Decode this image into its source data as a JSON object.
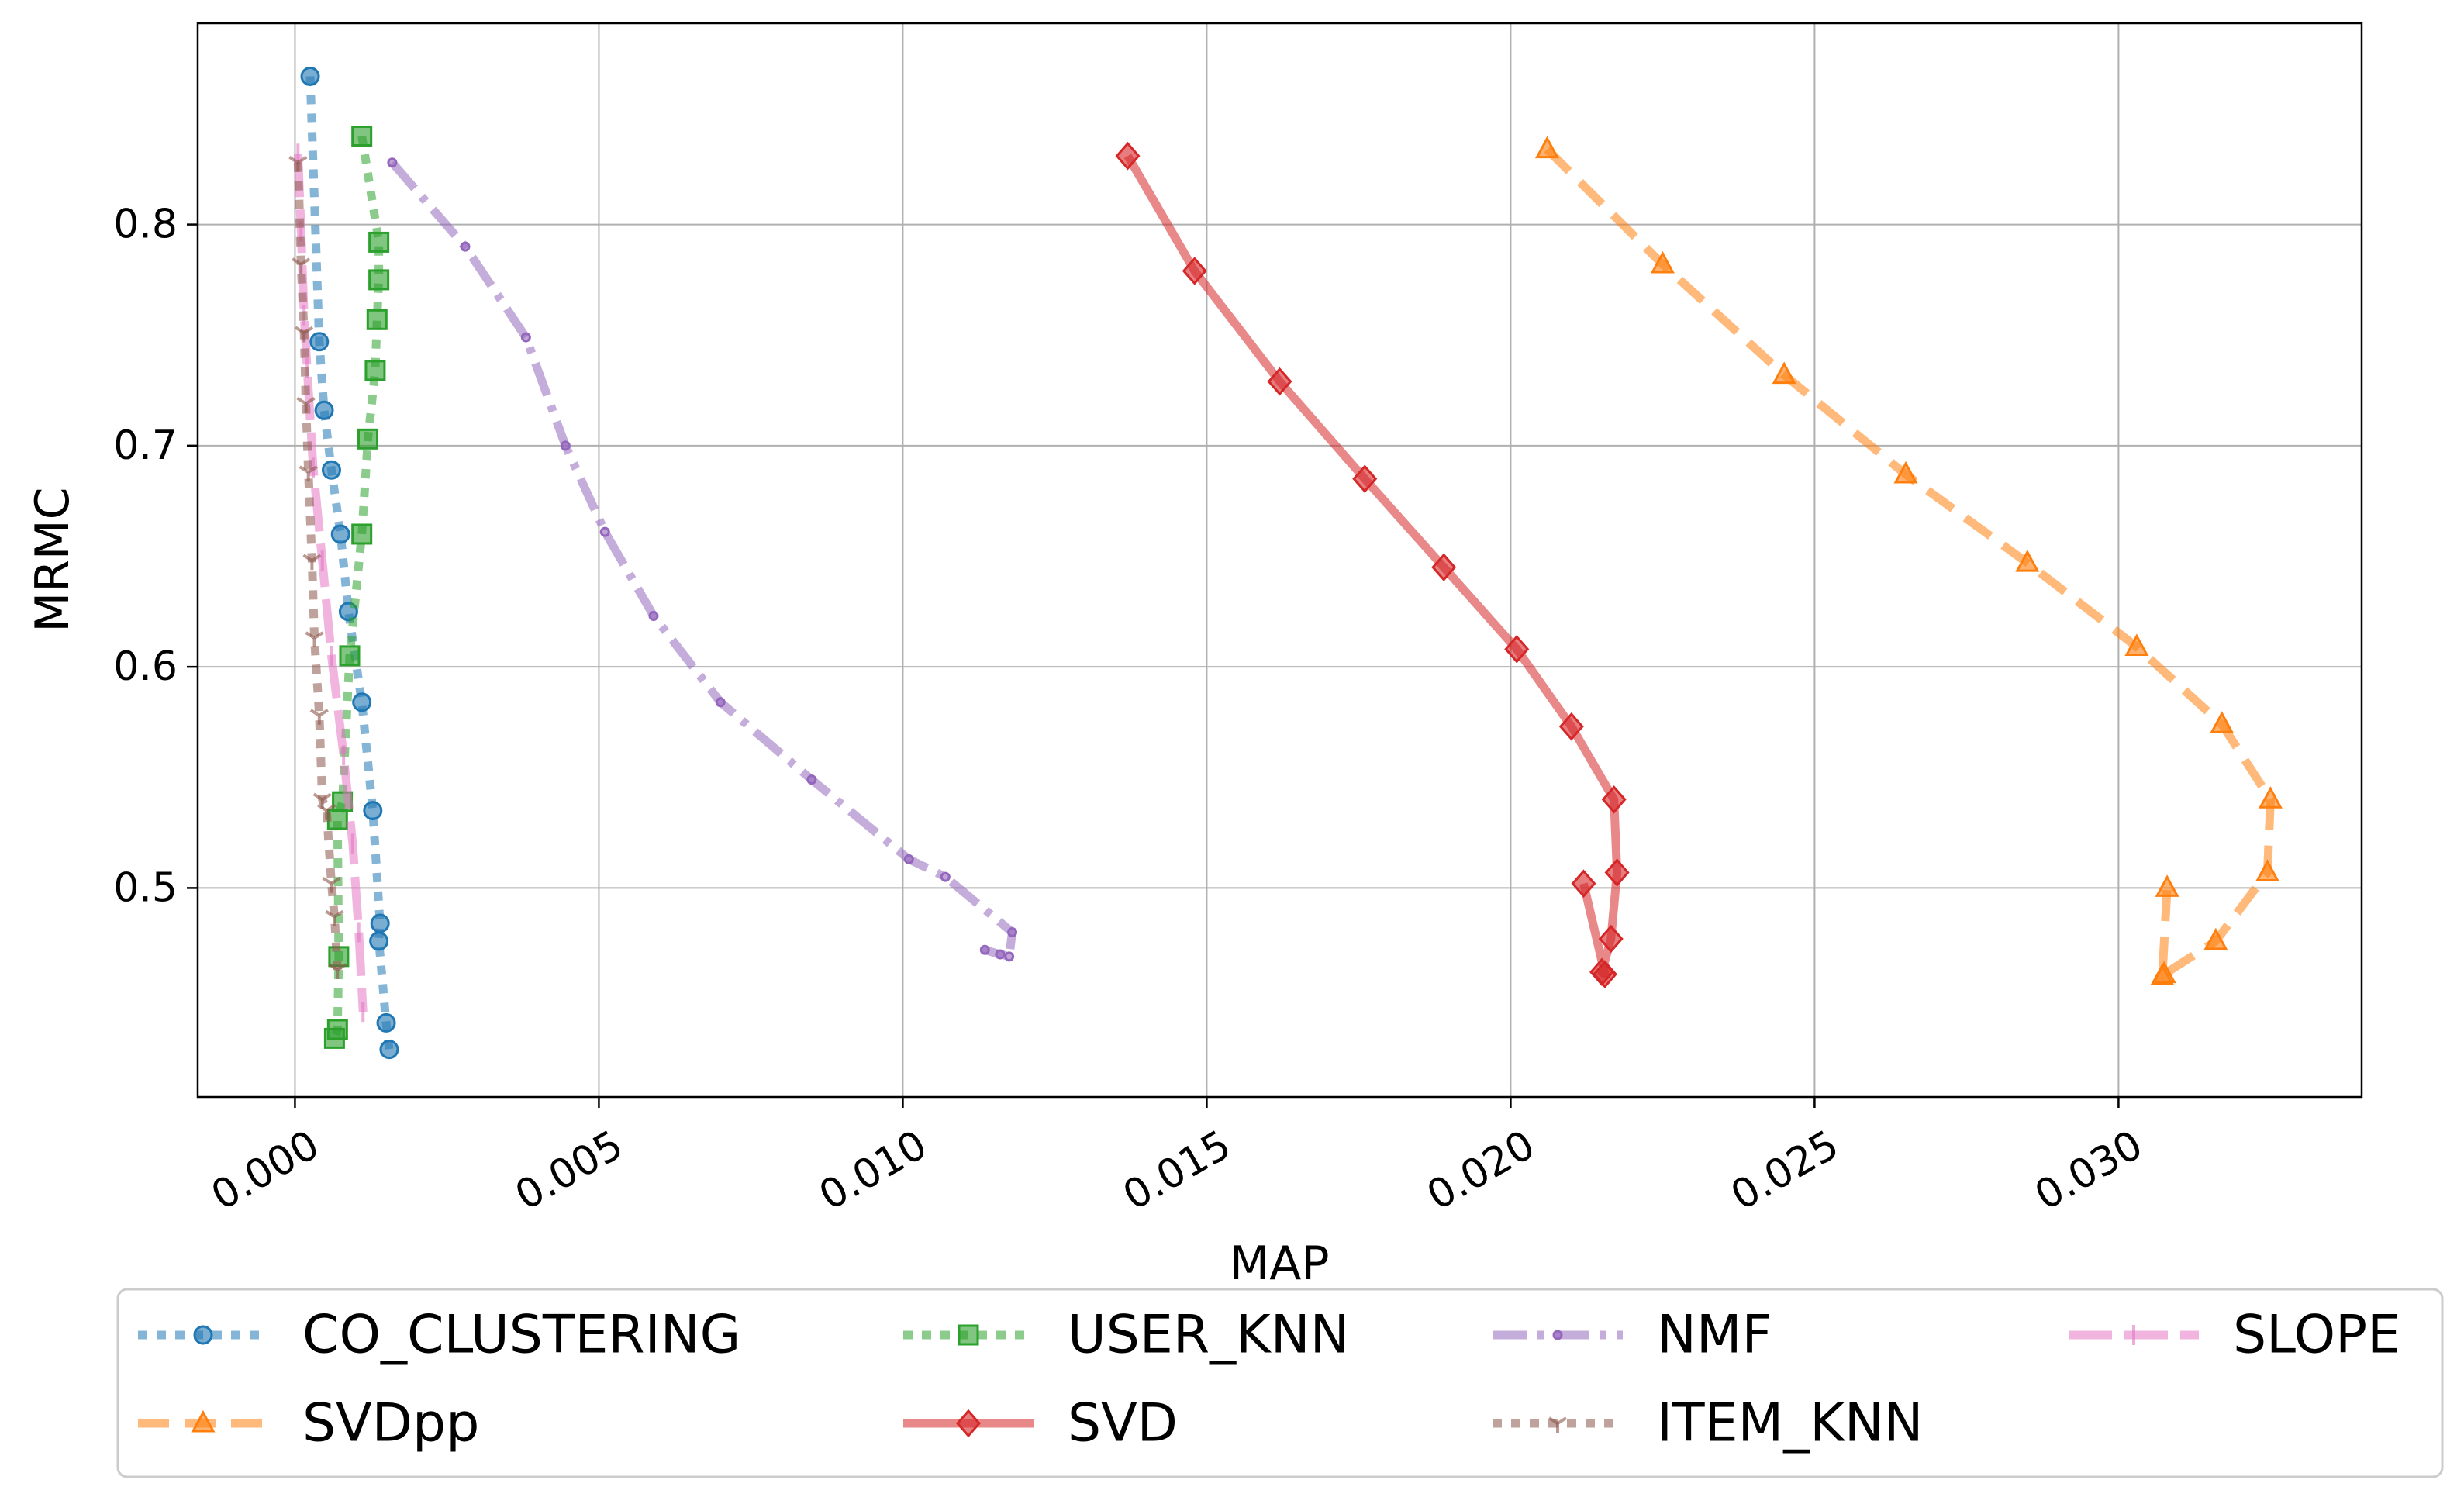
{
  "chart_data": {
    "type": "line",
    "title": "",
    "xlabel": "MAP",
    "ylabel": "MRMC",
    "xlim": [
      -0.0016,
      0.034
    ],
    "ylim": [
      0.4055,
      0.891
    ],
    "xticks": [
      0.0,
      0.005,
      0.01,
      0.015,
      0.02,
      0.025,
      0.03
    ],
    "xtick_labels": [
      "0.000",
      "0.005",
      "0.010",
      "0.015",
      "0.020",
      "0.025",
      "0.030"
    ],
    "yticks": [
      0.5,
      0.6,
      0.7,
      0.8
    ],
    "ytick_labels": [
      "0.5",
      "0.6",
      "0.7",
      "0.8"
    ],
    "grid": true,
    "legend_placement": "below",
    "series": [
      {
        "name": "CO_CLUSTERING",
        "color": "#1f77b4",
        "marker": "circle",
        "dash": "dotted",
        "x": [
          0.00025,
          0.0004,
          0.00048,
          0.0006,
          0.00075,
          0.00088,
          0.0011,
          0.00128,
          0.0014,
          0.00138,
          0.0015,
          0.00155
        ],
        "y": [
          0.867,
          0.747,
          0.716,
          0.689,
          0.66,
          0.625,
          0.584,
          0.535,
          0.484,
          0.476,
          0.439,
          0.427
        ]
      },
      {
        "name": "USER_KNN",
        "color": "#2ca02c",
        "marker": "square",
        "dash": "dotted",
        "x": [
          0.0011,
          0.00138,
          0.00138,
          0.00135,
          0.00132,
          0.0012,
          0.0011,
          0.0009,
          0.00078,
          0.0007,
          0.00072,
          0.0007,
          0.00065
        ],
        "y": [
          0.84,
          0.792,
          0.775,
          0.757,
          0.734,
          0.703,
          0.66,
          0.605,
          0.539,
          0.531,
          0.469,
          0.436,
          0.432
        ]
      },
      {
        "name": "NMF",
        "color": "#9467bd",
        "marker": "small-circle",
        "dash": "dashdot",
        "x": [
          0.0016,
          0.0028,
          0.0038,
          0.00445,
          0.0051,
          0.0059,
          0.007,
          0.0085,
          0.0101,
          0.0107,
          0.0118,
          0.01175,
          0.01135,
          0.0116
        ],
        "y": [
          0.828,
          0.79,
          0.749,
          0.7,
          0.661,
          0.623,
          0.584,
          0.549,
          0.513,
          0.505,
          0.48,
          0.469,
          0.472,
          0.47
        ]
      },
      {
        "name": "SLOPE",
        "color": "#e377c2",
        "marker": "vline",
        "dash": "longdash",
        "x": [
          5e-05,
          0.0001,
          0.00015,
          0.0002,
          0.0003,
          0.00045,
          0.0006,
          0.0008,
          0.00095,
          0.00105,
          0.00112
        ],
        "y": [
          0.832,
          0.797,
          0.759,
          0.735,
          0.69,
          0.648,
          0.605,
          0.56,
          0.52,
          0.48,
          0.444
        ]
      },
      {
        "name": "SVDpp",
        "color": "#ff7f0e",
        "marker": "triangle",
        "dash": "dashed",
        "x": [
          0.0206,
          0.0225,
          0.0245,
          0.0265,
          0.0285,
          0.0303,
          0.0317,
          0.0325,
          0.03245,
          0.0316,
          0.03075,
          0.03072,
          0.0308
        ],
        "y": [
          0.834,
          0.782,
          0.732,
          0.687,
          0.647,
          0.609,
          0.574,
          0.54,
          0.507,
          0.476,
          0.461,
          0.46,
          0.5
        ]
      },
      {
        "name": "SVD",
        "color": "#d62728",
        "marker": "diamond",
        "dash": "solid",
        "x": [
          0.0137,
          0.0148,
          0.0162,
          0.0176,
          0.0189,
          0.0201,
          0.021,
          0.0217,
          0.02175,
          0.02165,
          0.0215,
          0.02155,
          0.0212
        ],
        "y": [
          0.831,
          0.779,
          0.729,
          0.685,
          0.645,
          0.608,
          0.573,
          0.54,
          0.507,
          0.477,
          0.462,
          0.461,
          0.502
        ]
      },
      {
        "name": "ITEM_KNN",
        "color": "#8c564b",
        "marker": "tri-down",
        "dash": "dotted",
        "x": [
          5e-05,
          0.0001,
          0.00015,
          0.00018,
          0.00022,
          0.00028,
          0.00032,
          0.0004,
          0.00045,
          0.00052,
          0.0006,
          0.00065,
          0.0007
        ],
        "y": [
          0.828,
          0.782,
          0.751,
          0.719,
          0.688,
          0.648,
          0.613,
          0.578,
          0.54,
          0.535,
          0.502,
          0.487,
          0.463
        ]
      }
    ]
  },
  "legend": {
    "entries": [
      {
        "name": "CO_CLUSTERING",
        "series": 0
      },
      {
        "name": "USER_KNN",
        "series": 1
      },
      {
        "name": "NMF",
        "series": 2
      },
      {
        "name": "SLOPE",
        "series": 3
      },
      {
        "name": "SVDpp",
        "series": 4
      },
      {
        "name": "SVD",
        "series": 5
      },
      {
        "name": "ITEM_KNN",
        "series": 6
      }
    ]
  }
}
